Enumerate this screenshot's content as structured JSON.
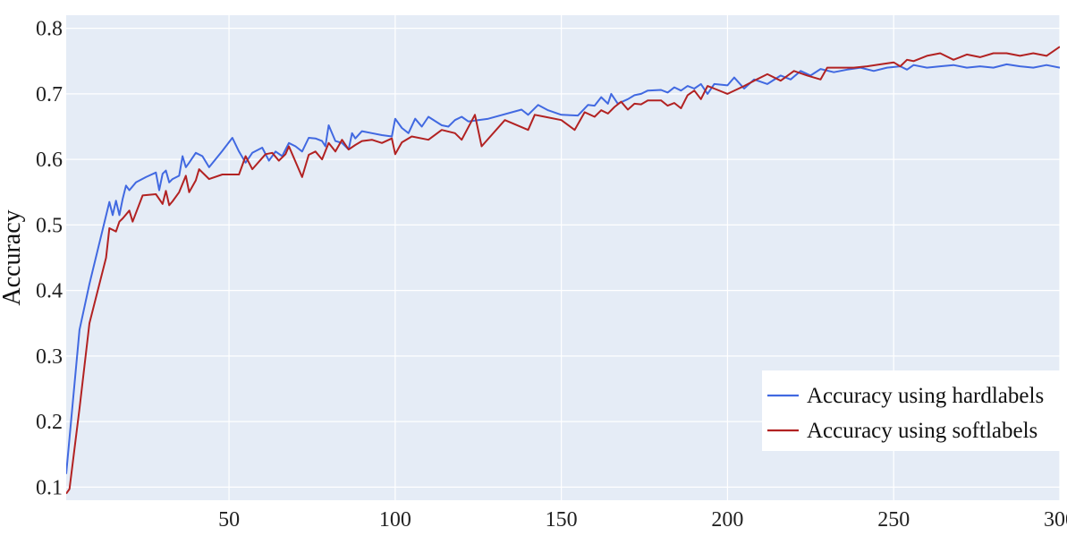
{
  "chart_data": {
    "type": "line",
    "title": "",
    "xlabel": "",
    "ylabel": "Accuracy",
    "xlim": [
      1,
      300
    ],
    "ylim": [
      0.08,
      0.82
    ],
    "xticks": [
      50,
      100,
      150,
      200,
      250,
      300
    ],
    "xtick_labels": [
      "50",
      "100",
      "150",
      "200",
      "250",
      "300"
    ],
    "yticks": [
      0.1,
      0.2,
      0.3,
      0.4,
      0.5,
      0.6,
      0.7,
      0.8
    ],
    "ytick_labels": [
      "0.1",
      "0.2",
      "0.3",
      "0.4",
      "0.5",
      "0.6",
      "0.7",
      "0.8"
    ],
    "grid": true,
    "legend_position": "bottom-right",
    "background": "#e5ecf6",
    "series": [
      {
        "name": "Accuracy using hardlabels",
        "color": "#4169e1",
        "x": [
          1,
          5,
          8,
          14,
          15,
          16,
          17,
          18,
          19,
          20,
          22,
          25,
          28,
          29,
          30,
          31,
          32,
          33,
          35,
          36,
          37,
          38,
          40,
          42,
          44,
          48,
          51,
          53,
          55,
          57,
          60,
          62,
          64,
          66,
          68,
          70,
          72,
          74,
          76,
          78,
          79,
          80,
          82,
          84,
          86,
          87,
          88,
          90,
          93,
          96,
          99,
          100,
          102,
          104,
          106,
          108,
          110,
          114,
          116,
          118,
          120,
          122,
          128,
          138,
          140,
          143,
          146,
          150,
          155,
          158,
          160,
          162,
          164,
          165,
          167,
          170,
          172,
          174,
          176,
          180,
          182,
          184,
          186,
          188,
          190,
          192,
          194,
          196,
          200,
          202,
          205,
          208,
          212,
          216,
          219,
          222,
          225,
          228,
          232,
          236,
          240,
          244,
          248,
          252,
          254,
          256,
          260,
          264,
          268,
          272,
          276,
          280,
          284,
          288,
          292,
          296,
          300
        ],
        "values": [
          0.12,
          0.34,
          0.41,
          0.535,
          0.515,
          0.537,
          0.515,
          0.54,
          0.56,
          0.553,
          0.565,
          0.573,
          0.58,
          0.553,
          0.578,
          0.583,
          0.565,
          0.57,
          0.575,
          0.605,
          0.588,
          0.595,
          0.61,
          0.605,
          0.588,
          0.613,
          0.633,
          0.612,
          0.595,
          0.61,
          0.618,
          0.598,
          0.612,
          0.605,
          0.625,
          0.62,
          0.612,
          0.633,
          0.632,
          0.628,
          0.62,
          0.652,
          0.628,
          0.625,
          0.615,
          0.64,
          0.632,
          0.643,
          0.64,
          0.637,
          0.635,
          0.662,
          0.648,
          0.64,
          0.662,
          0.65,
          0.665,
          0.652,
          0.65,
          0.66,
          0.665,
          0.658,
          0.662,
          0.676,
          0.668,
          0.683,
          0.675,
          0.668,
          0.667,
          0.683,
          0.682,
          0.695,
          0.685,
          0.7,
          0.685,
          0.692,
          0.698,
          0.7,
          0.705,
          0.706,
          0.702,
          0.71,
          0.705,
          0.712,
          0.708,
          0.715,
          0.7,
          0.715,
          0.713,
          0.725,
          0.708,
          0.722,
          0.715,
          0.728,
          0.722,
          0.735,
          0.728,
          0.738,
          0.733,
          0.737,
          0.74,
          0.735,
          0.74,
          0.742,
          0.737,
          0.744,
          0.74,
          0.742,
          0.744,
          0.74,
          0.742,
          0.74,
          0.745,
          0.742,
          0.74,
          0.744,
          0.74
        ]
      },
      {
        "name": "Accuracy using softlabels",
        "color": "#b22222",
        "x": [
          1,
          2,
          5,
          8,
          13,
          14,
          16,
          17,
          18,
          20,
          21,
          24,
          28,
          30,
          31,
          32,
          33,
          35,
          37,
          38,
          40,
          41,
          44,
          48,
          51,
          53,
          55,
          57,
          61,
          63,
          65,
          67,
          68,
          72,
          74,
          76,
          78,
          80,
          82,
          84,
          86,
          88,
          90,
          93,
          96,
          99,
          100,
          102,
          105,
          110,
          114,
          118,
          120,
          124,
          126,
          133,
          140,
          142,
          145,
          150,
          154,
          157,
          160,
          162,
          164,
          166,
          168,
          170,
          172,
          174,
          176,
          180,
          182,
          184,
          186,
          188,
          190,
          192,
          194,
          196,
          200,
          205,
          208,
          212,
          216,
          220,
          224,
          228,
          230,
          234,
          238,
          242,
          246,
          250,
          252,
          254,
          256,
          260,
          264,
          268,
          270,
          272,
          276,
          280,
          284,
          288,
          292,
          296,
          298,
          300
        ],
        "values": [
          0.09,
          0.097,
          0.22,
          0.35,
          0.45,
          0.495,
          0.49,
          0.505,
          0.51,
          0.522,
          0.505,
          0.545,
          0.547,
          0.532,
          0.552,
          0.53,
          0.536,
          0.55,
          0.575,
          0.55,
          0.568,
          0.585,
          0.57,
          0.577,
          0.577,
          0.577,
          0.605,
          0.585,
          0.608,
          0.61,
          0.598,
          0.608,
          0.62,
          0.573,
          0.607,
          0.612,
          0.6,
          0.625,
          0.612,
          0.63,
          0.615,
          0.622,
          0.628,
          0.63,
          0.625,
          0.632,
          0.608,
          0.626,
          0.635,
          0.63,
          0.645,
          0.64,
          0.63,
          0.668,
          0.62,
          0.66,
          0.645,
          0.668,
          0.665,
          0.66,
          0.645,
          0.672,
          0.665,
          0.675,
          0.67,
          0.68,
          0.688,
          0.676,
          0.685,
          0.684,
          0.69,
          0.69,
          0.682,
          0.686,
          0.678,
          0.698,
          0.705,
          0.692,
          0.712,
          0.708,
          0.7,
          0.712,
          0.72,
          0.73,
          0.72,
          0.735,
          0.728,
          0.722,
          0.74,
          0.74,
          0.74,
          0.742,
          0.745,
          0.748,
          0.742,
          0.752,
          0.75,
          0.758,
          0.762,
          0.752,
          0.756,
          0.76,
          0.756,
          0.762,
          0.762,
          0.758,
          0.762,
          0.758,
          0.765,
          0.772
        ]
      }
    ]
  }
}
